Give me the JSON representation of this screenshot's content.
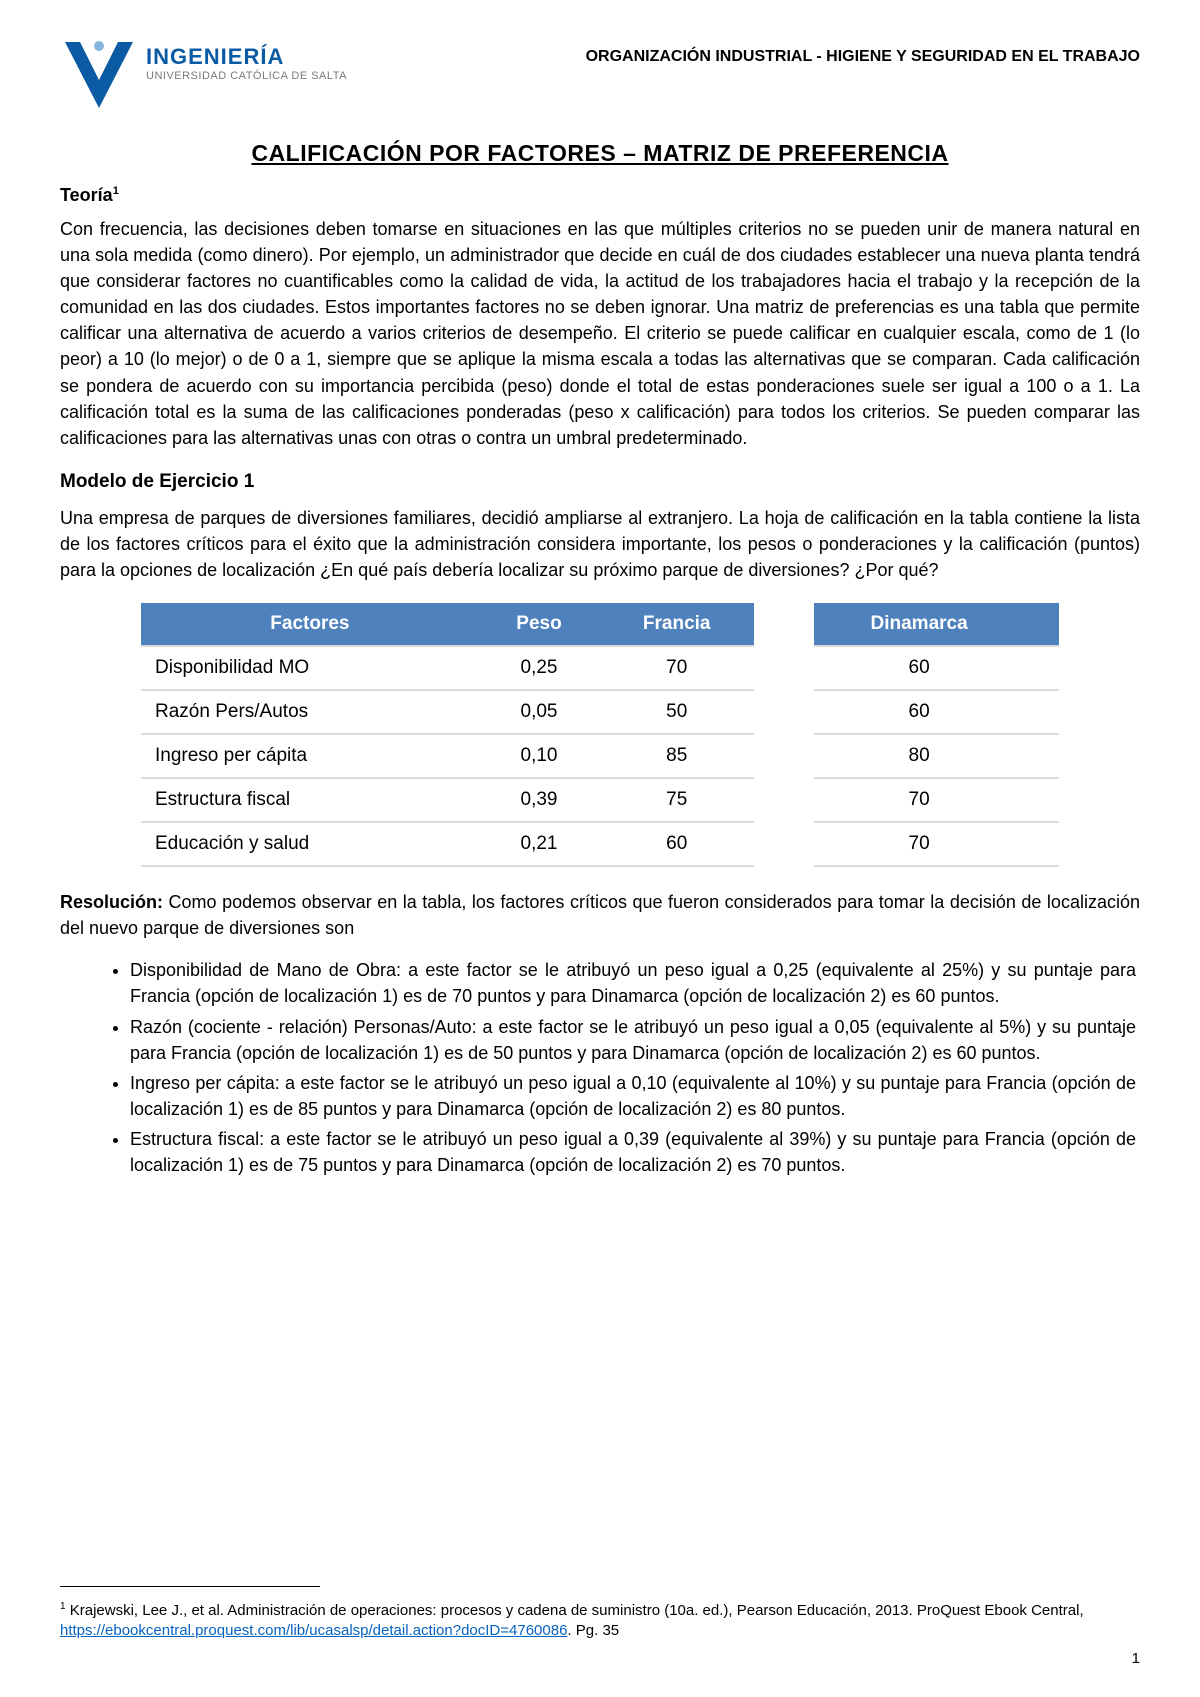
{
  "header": {
    "logo_title": "INGENIERÍA",
    "logo_subtitle": "UNIVERSIDAD CATÓLICA DE SALTA",
    "right_text": "ORGANIZACIÓN INDUSTRIAL - HIGIENE Y SEGURIDAD EN EL TRABAJO",
    "logo_colors": {
      "main": "#0b5aa4",
      "sub": "#7a7a7a"
    }
  },
  "title": "CALIFICACIÓN POR FACTORES – MATRIZ DE PREFERENCIA",
  "theory": {
    "label": "Teoría",
    "footnote_marker": "1",
    "text": "Con frecuencia, las decisiones deben tomarse en situaciones en las que múltiples criterios no se pueden unir de manera natural en una sola medida (como dinero). Por ejemplo, un administrador que decide en cuál de dos ciudades establecer una nueva planta tendrá que considerar factores no cuantificables como la calidad de vida, la actitud de los trabajadores hacia el trabajo y la recepción de la comunidad en las dos ciudades. Estos importantes factores no se deben ignorar. Una matriz de preferencias es una tabla que permite calificar una alternativa de acuerdo a varios criterios de desempeño. El criterio se puede calificar en cualquier escala, como de 1 (lo peor) a 10 (lo mejor) o de 0 a 1, siempre que se aplique la misma escala a todas las alternativas que se comparan. Cada calificación se pondera de acuerdo con su importancia percibida (peso) donde el total de estas ponderaciones suele ser igual a 100 o a 1. La calificación total es la suma de las calificaciones ponderadas (peso x calificación) para todos los criterios. Se pueden comparar las calificaciones para las alternativas unas con otras o contra un umbral predeterminado."
  },
  "exercise": {
    "title": "Modelo de Ejercicio 1",
    "text": "Una empresa de parques de diversiones familiares, decidió ampliarse al extranjero. La hoja de calificación en la tabla contiene la lista de los factores críticos para el éxito que la administración considera importante, los pesos o ponderaciones y la calificación (puntos) para la opciones de localización ¿En qué país debería localizar su próximo parque de diversiones? ¿Por qué?"
  },
  "table": {
    "header_bg": "#4f81bd",
    "header_fg": "#ffffff",
    "columns": [
      "Factores",
      "Peso",
      "Francia",
      "Dinamarca"
    ],
    "rows": [
      {
        "factor": "Disponibilidad MO",
        "peso": "0,25",
        "francia": "70",
        "dinamarca": "60"
      },
      {
        "factor": "Razón Pers/Autos",
        "peso": "0,05",
        "francia": "50",
        "dinamarca": "60"
      },
      {
        "factor": "Ingreso per cápita",
        "peso": "0,10",
        "francia": "85",
        "dinamarca": "80"
      },
      {
        "factor": "Estructura fiscal",
        "peso": "0,39",
        "francia": "75",
        "dinamarca": "70"
      },
      {
        "factor": "Educación y salud",
        "peso": "0,21",
        "francia": "60",
        "dinamarca": "70"
      }
    ]
  },
  "resolution": {
    "label": "Resolución:",
    "intro": " Como podemos observar en la tabla, los factores críticos que fueron considerados para tomar la decisión de localización del nuevo parque de diversiones son",
    "bullets": [
      "Disponibilidad de Mano de Obra: a este factor se le atribuyó un peso igual a 0,25 (equivalente al 25%) y su puntaje para Francia (opción de localización 1) es de 70 puntos y para Dinamarca (opción de localización 2) es 60 puntos.",
      "Razón (cociente - relación) Personas/Auto: a este factor se le atribuyó un peso igual a 0,05 (equivalente al 5%) y su puntaje para Francia (opción de localización 1) es de 50 puntos y para Dinamarca (opción de localización 2) es 60 puntos.",
      "Ingreso per cápita: a este factor se le atribuyó un peso igual a 0,10 (equivalente al 10%) y su puntaje para Francia (opción de localización 1) es de 85 puntos y para Dinamarca (opción de localización 2) es 80 puntos.",
      "Estructura fiscal: a este factor se le atribuyó un peso igual a 0,39 (equivalente al 39%) y su puntaje para Francia (opción de localización 1) es de 75 puntos y para Dinamarca (opción de localización 2) es 70 puntos."
    ]
  },
  "footnote": {
    "marker": "1",
    "text_before": " Krajewski, Lee J., et al. Administración de operaciones: procesos y cadena de suministro (10a. ed.), Pearson Educación, 2013. ProQuest Ebook Central, ",
    "link_text": "https://ebookcentral.proquest.com/lib/ucasalsp/detail.action?docID=4760086",
    "text_after": ". Pg. 35"
  },
  "page_number": "1"
}
